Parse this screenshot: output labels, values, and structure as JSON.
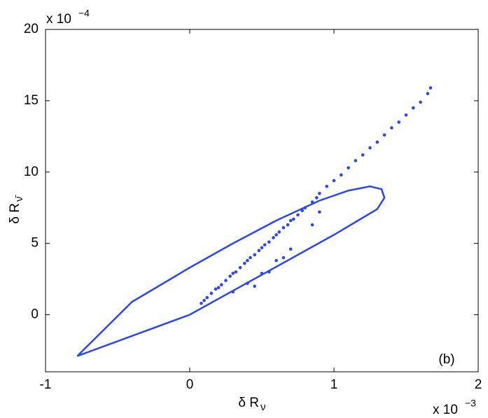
{
  "chart_data": {
    "type": "scatter",
    "x_label": "δ R",
    "x_label_sub": "ν",
    "y_label": "δ R",
    "y_label_sub": "ν̄",
    "x_multiplier": "x 10",
    "x_multiplier_exp": "−3",
    "y_multiplier": "x 10",
    "y_multiplier_exp": "−4",
    "annotation": "(b)",
    "xlim": [
      -1,
      2
    ],
    "ylim": [
      -4,
      20
    ],
    "xticks": [
      -1,
      0,
      1,
      2
    ],
    "yticks": [
      0,
      5,
      10,
      15,
      20
    ],
    "grid": false,
    "series": [
      {
        "mode": "markers",
        "color": "#2a47e8",
        "x": [
          0.08,
          0.1,
          0.12,
          0.15,
          0.18,
          0.2,
          0.22,
          0.25,
          0.28,
          0.3,
          0.32,
          0.35,
          0.38,
          0.4,
          0.42,
          0.45,
          0.48,
          0.5,
          0.52,
          0.55,
          0.58,
          0.6,
          0.62,
          0.65,
          0.68,
          0.7,
          0.72,
          0.75,
          0.78,
          0.8,
          0.85,
          0.88,
          0.9,
          0.95,
          1.0,
          1.05,
          1.1,
          1.15,
          1.2,
          1.25,
          1.3,
          1.35,
          1.4,
          1.45,
          1.5,
          1.55,
          1.6,
          1.65,
          1.67,
          0.3,
          0.4,
          0.5,
          0.6,
          0.65,
          0.7,
          0.45,
          0.55,
          0.85,
          0.9
        ],
        "values": [
          0.8,
          1.0,
          1.2,
          1.5,
          1.8,
          1.9,
          2.1,
          2.4,
          2.7,
          2.9,
          3.0,
          3.3,
          3.6,
          3.8,
          4.0,
          4.2,
          4.5,
          4.7,
          4.9,
          5.1,
          5.4,
          5.6,
          5.8,
          6.1,
          6.3,
          6.6,
          6.7,
          7.0,
          7.3,
          7.5,
          7.9,
          8.2,
          8.5,
          9.0,
          9.4,
          9.8,
          10.3,
          10.8,
          11.2,
          11.7,
          12.1,
          12.6,
          13.1,
          13.5,
          14.0,
          14.5,
          14.9,
          15.5,
          15.9,
          1.6,
          2.2,
          2.9,
          3.8,
          4.0,
          4.6,
          2.0,
          3.0,
          6.3,
          7.2
        ]
      },
      {
        "mode": "line",
        "color": "#2a47e8",
        "x": [
          -0.78,
          0,
          0.5,
          1.0,
          1.3,
          1.35,
          1.33,
          1.25,
          1.1,
          0.9,
          0.6,
          0.3,
          0,
          -0.4,
          -0.78
        ],
        "values": [
          -2.9,
          0,
          2.8,
          5.6,
          7.4,
          8.2,
          8.8,
          9.0,
          8.7,
          8.0,
          6.6,
          5.0,
          3.3,
          0.9,
          -2.9
        ]
      }
    ]
  }
}
